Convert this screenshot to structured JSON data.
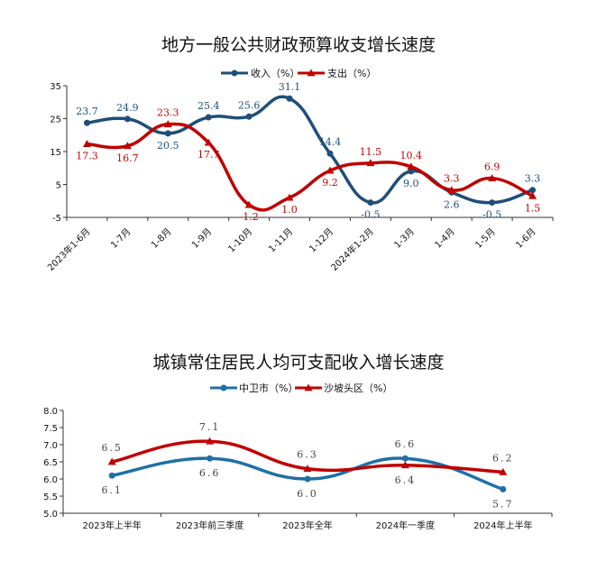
{
  "chart_data": [
    {
      "type": "line",
      "title": "地方一般公共财政预算收支增长速度",
      "categories": [
        "2023年1-6月",
        "1-7月",
        "1-8月",
        "1-9月",
        "1-10月",
        "1-11月",
        "1-12月",
        "2024年1-2月",
        "1-3月",
        "1-4月",
        "1-5月",
        "1-6月"
      ],
      "series": [
        {
          "name": "收入（%）",
          "values": [
            23.7,
            24.9,
            20.5,
            25.4,
            25.6,
            31.1,
            14.4,
            -0.5,
            9.0,
            2.6,
            -0.5,
            3.3
          ],
          "labels": [
            "23.7",
            "24.9",
            "20.5",
            "25.4",
            "25.6",
            "31.1",
            "14.4",
            "-0.5",
            "9.0",
            "2.6",
            "-0.5",
            "3.3"
          ],
          "color": "#1f4e79",
          "marker": "circle"
        },
        {
          "name": "支出（%）",
          "values": [
            17.3,
            16.7,
            23.3,
            17.7,
            -1.2,
            1.0,
            9.2,
            11.5,
            10.4,
            3.3,
            6.9,
            1.5
          ],
          "labels": [
            "17.3",
            "16.7",
            "23.3",
            "17.7",
            "-1.2",
            "1.0",
            "9.2",
            "11.5",
            "10.4",
            "3.3",
            "6.9",
            "1.5"
          ],
          "color": "#c00000",
          "marker": "triangle"
        }
      ],
      "yticks": [
        "35",
        "25",
        "15",
        "5",
        "-5"
      ],
      "ylim": [
        -5,
        35
      ],
      "legend": "top",
      "grid": false
    },
    {
      "type": "line",
      "title": "城镇常住居民人均可支配收入增长速度",
      "categories": [
        "2023年上半年",
        "2023年前三季度",
        "2023年全年",
        "2024年一季度",
        "2024年上半年"
      ],
      "series": [
        {
          "name": "中卫市（%）",
          "values": [
            6.1,
            6.6,
            6.0,
            6.6,
            5.7
          ],
          "labels": [
            "6.1",
            "6.6",
            "6.0",
            "6.6",
            "5.7"
          ],
          "color": "#1f6fa8",
          "marker": "circle"
        },
        {
          "name": "沙坡头区（%）",
          "values": [
            6.5,
            7.1,
            6.3,
            6.4,
            6.2
          ],
          "labels": [
            "6.5",
            "7.1",
            "6.3",
            "6.4",
            "6.2"
          ],
          "color": "#c00000",
          "marker": "triangle"
        }
      ],
      "yticks": [
        "8.0",
        "7.5",
        "7.0",
        "6.5",
        "6.0",
        "5.5",
        "5.0"
      ],
      "ylim": [
        5.0,
        8.0
      ],
      "legend": "top",
      "grid": false
    }
  ]
}
